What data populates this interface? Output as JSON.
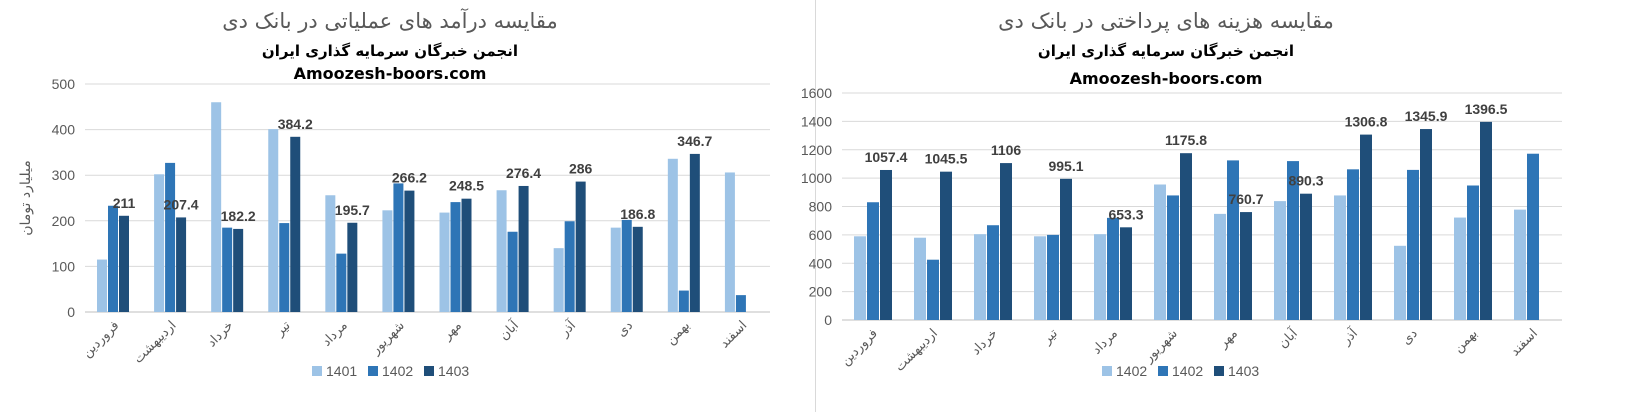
{
  "colors": {
    "s1": "#9DC3E6",
    "s2": "#2E75B6",
    "s3": "#1F4E79",
    "grid": "#d9d9d9",
    "axis": "#bfbfbf"
  },
  "chart_data": [
    {
      "type": "bar",
      "title": "مقایسه درآمد های عملیاتی در بانک دی",
      "subtitle": "انجمن خبرگان سرمایه گذاری ایران",
      "subtitle2": "Amoozesh-boors.com",
      "ylabel": "میلیارد تومان",
      "xlabel": "",
      "ylim": [
        0,
        500
      ],
      "yticks": [
        0,
        100,
        200,
        300,
        400,
        500
      ],
      "grid": true,
      "legend_position": "bottom",
      "categories": [
        "فروردین",
        "اردیبهشت",
        "خرداد",
        "تیر",
        "مرداد",
        "شهریور",
        "مهر",
        "آبان",
        "آذر",
        "دی",
        "بهمن",
        "اسفند"
      ],
      "series": [
        {
          "name": "1401",
          "values": [
            115,
            302,
            460,
            401,
            256,
            223,
            218,
            267,
            140,
            185,
            336,
            306
          ]
        },
        {
          "name": "1402",
          "values": [
            233,
            327,
            185,
            195,
            128,
            282,
            241,
            176,
            199,
            202,
            47,
            37
          ]
        },
        {
          "name": "1403",
          "values": [
            211,
            207.4,
            182.2,
            384.2,
            195.7,
            266.2,
            248.5,
            276.4,
            286,
            186.8,
            346.7,
            null
          ]
        }
      ],
      "data_labels": [
        "211",
        "207.4",
        "182.2",
        "384.2",
        "195.7",
        "266.2",
        "248.5",
        "276.4",
        "286",
        "186.8",
        "346.7",
        ""
      ]
    },
    {
      "type": "bar",
      "title": "مقایسه هزینه های پرداختی در بانک دی",
      "subtitle": "انجمن خبرگان سرمایه گذاری ایران",
      "subtitle2": "Amoozesh-boors.com",
      "ylabel": "",
      "xlabel": "",
      "ylim": [
        0,
        1600
      ],
      "yticks": [
        0,
        200,
        400,
        600,
        800,
        1000,
        1200,
        1400,
        1600
      ],
      "grid": true,
      "legend_position": "bottom",
      "categories": [
        "فروردین",
        "اردیبهشت",
        "خرداد",
        "تیر",
        "مرداد",
        "شهریور",
        "مهر",
        "آبان",
        "آذر",
        "دی",
        "بهمن",
        "اسفند"
      ],
      "series": [
        {
          "name": "1402",
          "values": [
            590,
            580,
            605,
            590,
            605,
            955,
            748,
            838,
            878,
            523,
            722,
            778
          ]
        },
        {
          "name": "1402",
          "values": [
            830,
            425,
            668,
            600,
            720,
            878,
            1125,
            1120,
            1062,
            1058,
            948,
            1172
          ]
        },
        {
          "name": "1403",
          "values": [
            1057.4,
            1045.5,
            1106,
            995.1,
            653.3,
            1175.8,
            760.7,
            890.3,
            1306.8,
            1345.9,
            1396.5,
            null
          ]
        }
      ],
      "data_labels": [
        "1057.4",
        "1045.5",
        "1106",
        "995.1",
        "653.3",
        "1175.8",
        "760.7",
        "890.3",
        "1306.8",
        "1345.9",
        "1396.5",
        ""
      ]
    }
  ]
}
